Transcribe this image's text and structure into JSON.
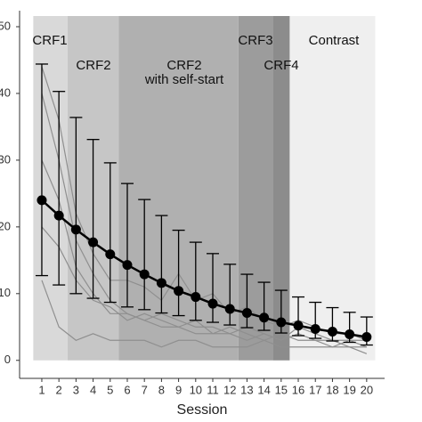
{
  "chart_data": {
    "type": "line",
    "x_label": "Session",
    "x": [
      1,
      2,
      3,
      4,
      5,
      6,
      7,
      8,
      9,
      10,
      11,
      12,
      13,
      14,
      15,
      16,
      17,
      18,
      19,
      20
    ],
    "xlim": [
      -0.3,
      21.05
    ],
    "xticks": [
      1,
      2,
      3,
      4,
      5,
      6,
      7,
      8,
      9,
      10,
      11,
      12,
      13,
      14,
      15,
      16,
      17,
      18,
      19,
      20
    ],
    "ylim": [
      -2.7,
      52.4
    ],
    "yticks": [
      0,
      10,
      20,
      30,
      40,
      50
    ],
    "phases": [
      {
        "label": [
          "CRF1"
        ],
        "start": 0.5,
        "end": 2.5,
        "color": "#d9d9d9"
      },
      {
        "label": [
          "CRF2"
        ],
        "start": 2.5,
        "end": 5.5,
        "color": "#c6c6c6"
      },
      {
        "label": [
          "CRF2",
          "with self-start"
        ],
        "start": 5.5,
        "end": 12.5,
        "color": "#b0b0b0"
      },
      {
        "label": [
          "CRF3"
        ],
        "start": 12.5,
        "end": 14.5,
        "color": "#9c9c9c"
      },
      {
        "label": [
          "CRF4"
        ],
        "start": 14.5,
        "end": 15.5,
        "color": "#8c8c8c"
      },
      {
        "label": [
          "Contrast"
        ],
        "start": 15.5,
        "end": 20.5,
        "color": "#efefef"
      }
    ],
    "individuals_color": "#8f8f8f",
    "individuals": [
      [
        44,
        36,
        22,
        16,
        12,
        12,
        11,
        9,
        13,
        9,
        10,
        7,
        8,
        6,
        5,
        6,
        5,
        4,
        4,
        3
      ],
      [
        40,
        30,
        18,
        13,
        9,
        7,
        6,
        7,
        6,
        5,
        5,
        4,
        5,
        4,
        3,
        5,
        4,
        3,
        3,
        3
      ],
      [
        30,
        24,
        14,
        10,
        7,
        7,
        6,
        5,
        5,
        4,
        4,
        5,
        4,
        3,
        4,
        3,
        3,
        3,
        2,
        2
      ],
      [
        20,
        17,
        12,
        9,
        8,
        6,
        7,
        6,
        5,
        6,
        4,
        4,
        3,
        4,
        3,
        4,
        3,
        2,
        3,
        2
      ],
      [
        12,
        5,
        3,
        4,
        3,
        3,
        3,
        2,
        3,
        3,
        2,
        2,
        2,
        3,
        2,
        2,
        2,
        2,
        2,
        1
      ]
    ],
    "color": "#000000",
    "values": [
      24,
      21.7,
      19.6,
      17.7,
      15.9,
      14.3,
      12.9,
      11.6,
      10.4,
      9.5,
      8.5,
      7.7,
      7.1,
      6.4,
      5.7,
      5.2,
      4.7,
      4.3,
      3.9,
      3.5
    ],
    "upper": [
      44.4,
      40.3,
      36.4,
      33.1,
      29.6,
      26.5,
      24.1,
      21.7,
      19.5,
      17.7,
      16,
      14.4,
      12.9,
      11.7,
      10.5,
      9.5,
      8.7,
      7.9,
      7.2,
      6.5
    ],
    "lower": [
      12.7,
      11.3,
      10,
      9.3,
      8.7,
      8,
      7.6,
      7.1,
      6.7,
      6,
      5.7,
      5.3,
      4.9,
      4.5,
      4.1,
      3.7,
      3.3,
      2.9,
      2.7,
      2.3
    ]
  }
}
